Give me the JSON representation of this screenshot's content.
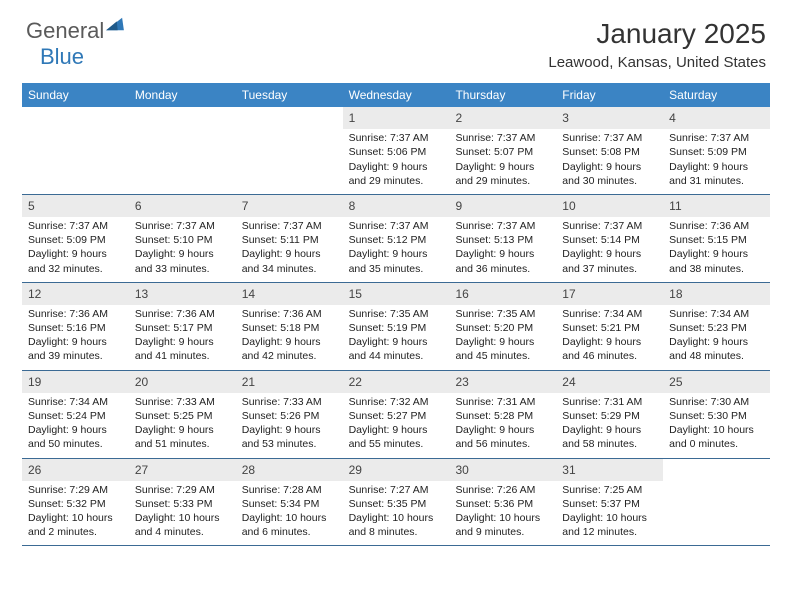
{
  "brand": {
    "general": "General",
    "blue": "Blue"
  },
  "title": "January 2025",
  "location": "Leawood, Kansas, United States",
  "colors": {
    "header_bg": "#3b84c4",
    "header_text": "#ffffff",
    "daynum_bg": "#ebebeb",
    "rule": "#3b6a94",
    "text": "#222222",
    "brand_gray": "#5a5a5a",
    "brand_blue": "#2f78b7"
  },
  "weekdays": [
    "Sunday",
    "Monday",
    "Tuesday",
    "Wednesday",
    "Thursday",
    "Friday",
    "Saturday"
  ],
  "weeks": [
    [
      null,
      null,
      null,
      {
        "n": "1",
        "sr": "7:37 AM",
        "ss": "5:06 PM",
        "dl": "9 hours and 29 minutes."
      },
      {
        "n": "2",
        "sr": "7:37 AM",
        "ss": "5:07 PM",
        "dl": "9 hours and 29 minutes."
      },
      {
        "n": "3",
        "sr": "7:37 AM",
        "ss": "5:08 PM",
        "dl": "9 hours and 30 minutes."
      },
      {
        "n": "4",
        "sr": "7:37 AM",
        "ss": "5:09 PM",
        "dl": "9 hours and 31 minutes."
      }
    ],
    [
      {
        "n": "5",
        "sr": "7:37 AM",
        "ss": "5:09 PM",
        "dl": "9 hours and 32 minutes."
      },
      {
        "n": "6",
        "sr": "7:37 AM",
        "ss": "5:10 PM",
        "dl": "9 hours and 33 minutes."
      },
      {
        "n": "7",
        "sr": "7:37 AM",
        "ss": "5:11 PM",
        "dl": "9 hours and 34 minutes."
      },
      {
        "n": "8",
        "sr": "7:37 AM",
        "ss": "5:12 PM",
        "dl": "9 hours and 35 minutes."
      },
      {
        "n": "9",
        "sr": "7:37 AM",
        "ss": "5:13 PM",
        "dl": "9 hours and 36 minutes."
      },
      {
        "n": "10",
        "sr": "7:37 AM",
        "ss": "5:14 PM",
        "dl": "9 hours and 37 minutes."
      },
      {
        "n": "11",
        "sr": "7:36 AM",
        "ss": "5:15 PM",
        "dl": "9 hours and 38 minutes."
      }
    ],
    [
      {
        "n": "12",
        "sr": "7:36 AM",
        "ss": "5:16 PM",
        "dl": "9 hours and 39 minutes."
      },
      {
        "n": "13",
        "sr": "7:36 AM",
        "ss": "5:17 PM",
        "dl": "9 hours and 41 minutes."
      },
      {
        "n": "14",
        "sr": "7:36 AM",
        "ss": "5:18 PM",
        "dl": "9 hours and 42 minutes."
      },
      {
        "n": "15",
        "sr": "7:35 AM",
        "ss": "5:19 PM",
        "dl": "9 hours and 44 minutes."
      },
      {
        "n": "16",
        "sr": "7:35 AM",
        "ss": "5:20 PM",
        "dl": "9 hours and 45 minutes."
      },
      {
        "n": "17",
        "sr": "7:34 AM",
        "ss": "5:21 PM",
        "dl": "9 hours and 46 minutes."
      },
      {
        "n": "18",
        "sr": "7:34 AM",
        "ss": "5:23 PM",
        "dl": "9 hours and 48 minutes."
      }
    ],
    [
      {
        "n": "19",
        "sr": "7:34 AM",
        "ss": "5:24 PM",
        "dl": "9 hours and 50 minutes."
      },
      {
        "n": "20",
        "sr": "7:33 AM",
        "ss": "5:25 PM",
        "dl": "9 hours and 51 minutes."
      },
      {
        "n": "21",
        "sr": "7:33 AM",
        "ss": "5:26 PM",
        "dl": "9 hours and 53 minutes."
      },
      {
        "n": "22",
        "sr": "7:32 AM",
        "ss": "5:27 PM",
        "dl": "9 hours and 55 minutes."
      },
      {
        "n": "23",
        "sr": "7:31 AM",
        "ss": "5:28 PM",
        "dl": "9 hours and 56 minutes."
      },
      {
        "n": "24",
        "sr": "7:31 AM",
        "ss": "5:29 PM",
        "dl": "9 hours and 58 minutes."
      },
      {
        "n": "25",
        "sr": "7:30 AM",
        "ss": "5:30 PM",
        "dl": "10 hours and 0 minutes."
      }
    ],
    [
      {
        "n": "26",
        "sr": "7:29 AM",
        "ss": "5:32 PM",
        "dl": "10 hours and 2 minutes."
      },
      {
        "n": "27",
        "sr": "7:29 AM",
        "ss": "5:33 PM",
        "dl": "10 hours and 4 minutes."
      },
      {
        "n": "28",
        "sr": "7:28 AM",
        "ss": "5:34 PM",
        "dl": "10 hours and 6 minutes."
      },
      {
        "n": "29",
        "sr": "7:27 AM",
        "ss": "5:35 PM",
        "dl": "10 hours and 8 minutes."
      },
      {
        "n": "30",
        "sr": "7:26 AM",
        "ss": "5:36 PM",
        "dl": "10 hours and 9 minutes."
      },
      {
        "n": "31",
        "sr": "7:25 AM",
        "ss": "5:37 PM",
        "dl": "10 hours and 12 minutes."
      },
      null
    ]
  ]
}
